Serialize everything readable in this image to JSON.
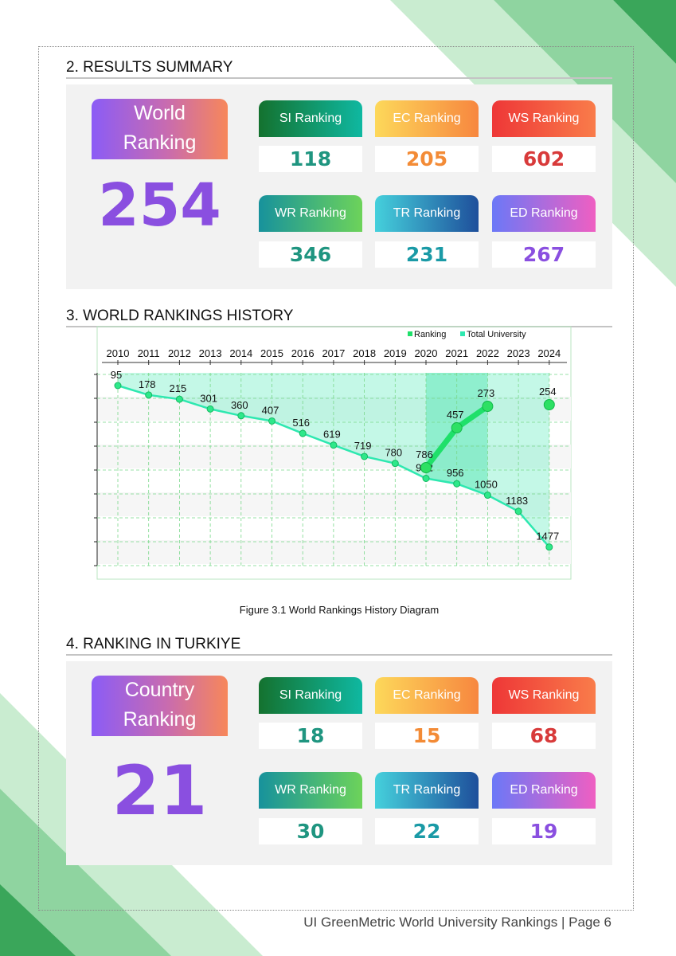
{
  "section2": {
    "title": "2. RESULTS SUMMARY",
    "world_label_1": "World",
    "world_label_2": "Ranking",
    "world_value": "254",
    "cards": [
      {
        "label": "SI Ranking",
        "value": "118"
      },
      {
        "label": "EC Ranking",
        "value": "205"
      },
      {
        "label": "WS Ranking",
        "value": "602"
      },
      {
        "label": "WR Ranking",
        "value": "346"
      },
      {
        "label": "TR Ranking",
        "value": "231"
      },
      {
        "label": "ED Ranking",
        "value": "267"
      }
    ]
  },
  "section3": {
    "title": "3. WORLD RANKINGS HISTORY",
    "caption": "Figure 3.1 World Rankings History Diagram"
  },
  "chart_data": {
    "type": "line",
    "title": "",
    "xlabel": "",
    "ylabel": "",
    "x": [
      2010,
      2011,
      2012,
      2013,
      2014,
      2015,
      2016,
      2017,
      2018,
      2019,
      2020,
      2021,
      2022,
      2023,
      2024
    ],
    "series": [
      {
        "name": "Ranking",
        "x": [
          2020,
          2021,
          2022,
          2024
        ],
        "values": [
          786,
          457,
          273,
          254
        ],
        "color": "#1fe06a"
      },
      {
        "name": "Total University",
        "x": [
          2010,
          2011,
          2012,
          2013,
          2014,
          2015,
          2016,
          2017,
          2018,
          2019,
          2020,
          2021,
          2022,
          2023,
          2024
        ],
        "values": [
          95,
          178,
          215,
          301,
          360,
          407,
          516,
          619,
          719,
          780,
          912,
          956,
          1050,
          1183,
          1477
        ],
        "color": "#2ee8b0"
      }
    ],
    "x_axis_position": "top",
    "y_axis_inverted": true,
    "legend": "top-right",
    "grid": true
  },
  "section4": {
    "title": "4. RANKING IN TURKIYE",
    "country_label_1": "Country",
    "country_label_2": "Ranking",
    "country_value": "21",
    "cards": [
      {
        "label": "SI Ranking",
        "value": "18"
      },
      {
        "label": "EC Ranking",
        "value": "15"
      },
      {
        "label": "WS Ranking",
        "value": "68"
      },
      {
        "label": "WR Ranking",
        "value": "30"
      },
      {
        "label": "TR Ranking",
        "value": "22"
      },
      {
        "label": "ED Ranking",
        "value": "19"
      }
    ]
  },
  "footer": {
    "text": "UI GreenMetric World University Rankings | Page 6"
  }
}
